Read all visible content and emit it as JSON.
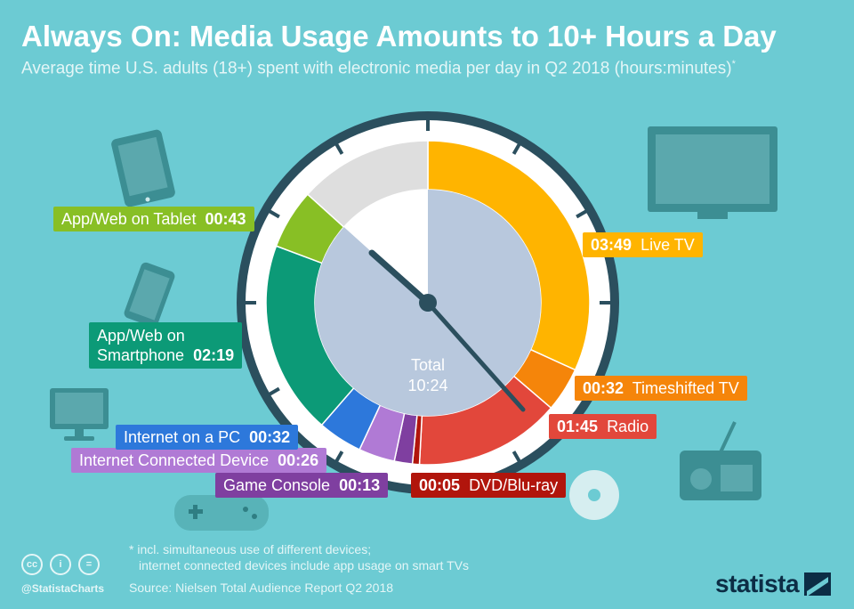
{
  "header": {
    "title": "Always On: Media Usage Amounts to 10+ Hours a Day",
    "subtitle": "Average time U.S. adults (18+) spent with electronic media per day in Q2 2018 (hours:minutes)",
    "subtitle_mark": "*"
  },
  "chart_data": {
    "type": "pie",
    "title": "Always On: Media Usage Amounts to 10+ Hours a Day",
    "subtitle": "Average time U.S. adults (18+) spent with electronic media per day in Q2 2018 (hours:minutes)",
    "unit": "hours:minutes",
    "total_label": "Total",
    "total_value": "10:24",
    "slices": [
      {
        "name": "Live TV",
        "value_label": "03:49",
        "minutes": 229,
        "color": "#ffb400"
      },
      {
        "name": "Timeshifted TV",
        "value_label": "00:32",
        "minutes": 32,
        "color": "#f5850a"
      },
      {
        "name": "Radio",
        "value_label": "01:45",
        "minutes": 105,
        "color": "#e2473b"
      },
      {
        "name": "DVD/Blu-ray",
        "value_label": "00:05",
        "minutes": 5,
        "color": "#b1150c"
      },
      {
        "name": "Game Console",
        "value_label": "00:13",
        "minutes": 13,
        "color": "#7f3fa0"
      },
      {
        "name": "Internet Connected Device",
        "value_label": "00:26",
        "minutes": 26,
        "color": "#b07ad5"
      },
      {
        "name": "Internet on a PC",
        "value_label": "00:32",
        "minutes": 32,
        "color": "#2d78db"
      },
      {
        "name": "App/Web on Smartphone",
        "value_label": "02:19",
        "minutes": 139,
        "color": "#0c9a77"
      },
      {
        "name": "App/Web on Tablet",
        "value_label": "00:43",
        "minutes": 43,
        "color": "#88bf25"
      }
    ],
    "remainder_color": "#dedede"
  },
  "labels": {
    "live_tv": {
      "value": "03:49",
      "name": "Live TV"
    },
    "timeshifted_tv": {
      "value": "00:32",
      "name": "Timeshifted TV"
    },
    "radio": {
      "value": "01:45",
      "name": "Radio"
    },
    "dvd": {
      "value": "00:05",
      "name": "DVD/Blu-ray"
    },
    "game_console": {
      "name": "Game Console",
      "value": "00:13"
    },
    "connected_device": {
      "name": "Internet Connected Device",
      "value": "00:26"
    },
    "pc": {
      "name": "Internet on a PC",
      "value": "00:32"
    },
    "smartphone": {
      "name_line1": "App/Web on",
      "name_line2": "Smartphone",
      "value": "02:19"
    },
    "tablet": {
      "name": "App/Web on Tablet",
      "value": "00:43"
    }
  },
  "footer": {
    "footnote_line1": "* incl. simultaneous use of different devices;",
    "footnote_line2": "internet connected devices include app usage on smart TVs",
    "source": "Source: Nielsen Total Audience Report Q2 2018",
    "handle": "@StatistaCharts",
    "brand": "statista",
    "cc_icons": [
      "cc-icon",
      "by-icon",
      "nd-icon"
    ]
  }
}
